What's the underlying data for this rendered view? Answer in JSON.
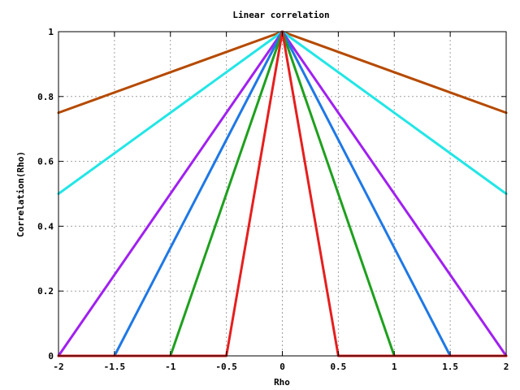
{
  "chart_data": {
    "type": "line",
    "title": "Linear correlation",
    "xlabel": "Rho",
    "ylabel": "Correlation(Rho)",
    "xlim": [
      -2,
      2
    ],
    "ylim": [
      0,
      1
    ],
    "x_ticks": [
      -2,
      -1.5,
      -1,
      -0.5,
      0,
      0.5,
      1,
      1.5,
      2
    ],
    "x_tick_labels": [
      "-2",
      "-1.5",
      "-1",
      "-0.5",
      "0",
      "0.5",
      "1",
      "1.5",
      "2"
    ],
    "y_ticks": [
      0,
      0.2,
      0.4,
      0.6,
      0.8,
      1
    ],
    "y_tick_labels": [
      "0",
      "0.2",
      "0.4",
      "0.6",
      "0.8",
      "1"
    ],
    "grid": true,
    "series": [
      {
        "color": "#b54a00",
        "points": [
          [
            -2,
            0.75
          ],
          [
            0,
            1
          ],
          [
            2,
            0.75
          ]
        ]
      },
      {
        "color": "#22e6e6",
        "points": [
          [
            -2,
            0.5
          ],
          [
            0,
            1
          ],
          [
            2,
            0.5
          ]
        ]
      },
      {
        "color": "#a020f0",
        "points": [
          [
            -2,
            0
          ],
          [
            0,
            1
          ],
          [
            2,
            0
          ]
        ]
      },
      {
        "color": "#1e78e6",
        "points": [
          [
            -2,
            0
          ],
          [
            -1.5,
            0
          ],
          [
            0,
            1
          ],
          [
            1.5,
            0
          ],
          [
            2,
            0
          ]
        ]
      },
      {
        "color": "#1ea01e",
        "points": [
          [
            -2,
            0
          ],
          [
            -1,
            0
          ],
          [
            0,
            1
          ],
          [
            1,
            0
          ],
          [
            2,
            0
          ]
        ]
      },
      {
        "color": "#e61e1e",
        "points": [
          [
            -2,
            0
          ],
          [
            -0.5,
            0
          ],
          [
            0,
            1
          ],
          [
            0.5,
            0
          ],
          [
            2,
            0
          ]
        ]
      }
    ]
  }
}
